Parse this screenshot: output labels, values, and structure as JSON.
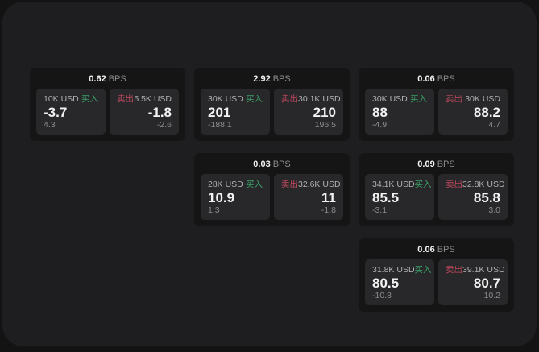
{
  "labels": {
    "bps_unit": "BPS",
    "buy": "买入",
    "sell": "卖出"
  },
  "colors": {
    "page_bg": "#131313",
    "panel_bg": "#1e1e20",
    "card_bg": "#151516",
    "tile_bg": "#28282a",
    "text_primary": "#f2f2f2",
    "text_label": "#b0b0b0",
    "text_muted": "#8c8c8c",
    "buy_green": "#3aa169",
    "sell_red": "#c2485e"
  },
  "cards": [
    {
      "bps": "0.62",
      "buy": {
        "amount": "10K USD",
        "price": "-3.7",
        "delta": "4.3"
      },
      "sell": {
        "amount": "5.5K USD",
        "price": "-1.8",
        "delta": "-2.6"
      }
    },
    {
      "bps": "2.92",
      "buy": {
        "amount": "30K USD",
        "price": "201",
        "delta": "-188.1"
      },
      "sell": {
        "amount": "30.1K USD",
        "price": "210",
        "delta": "196.5"
      }
    },
    {
      "bps": "0.06",
      "buy": {
        "amount": "30K USD",
        "price": "88",
        "delta": "-4.9"
      },
      "sell": {
        "amount": "30K USD",
        "price": "88.2",
        "delta": "4.7"
      }
    },
    {
      "bps": "0.03",
      "buy": {
        "amount": "28K USD",
        "price": "10.9",
        "delta": "1.3"
      },
      "sell": {
        "amount": "32.6K USD",
        "price": "11",
        "delta": "-1.8"
      }
    },
    {
      "bps": "0.09",
      "buy": {
        "amount": "34.1K USD",
        "price": "85.5",
        "delta": "-3.1"
      },
      "sell": {
        "amount": "32.8K USD",
        "price": "85.8",
        "delta": "3.0"
      }
    },
    {
      "bps": "0.06",
      "buy": {
        "amount": "31.8K USD",
        "price": "80.5",
        "delta": "-10.8"
      },
      "sell": {
        "amount": "39.1K USD",
        "price": "80.7",
        "delta": "10.2"
      }
    }
  ]
}
